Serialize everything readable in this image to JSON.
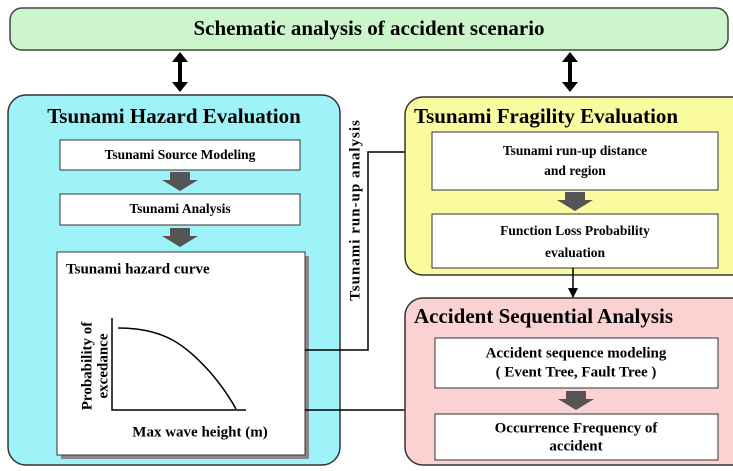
{
  "banner": {
    "title": "Schematic analysis of accident scenario"
  },
  "hazard": {
    "title": "Tsunami Hazard Evaluation",
    "steps": [
      "Tsunami Source Modeling",
      "Tsunami Analysis"
    ],
    "curve": {
      "title": "Tsunami hazard curve",
      "y_label": [
        "Probability of",
        "excedance"
      ],
      "x_label": "Max wave height (m)"
    }
  },
  "link_label": "Tsunami run-up analysis",
  "fragility": {
    "title": "Tsunami Fragility Evaluation",
    "steps": [
      [
        "Tsunami run-up distance",
        "and region"
      ],
      [
        "Function Loss Probability",
        "evaluation"
      ]
    ]
  },
  "sequence": {
    "title": "Accident Sequential Analysis",
    "steps": [
      [
        "Accident sequence modeling",
        "( Event Tree, Fault Tree )"
      ],
      [
        "Occurrence Frequency of",
        "accident"
      ]
    ]
  }
}
